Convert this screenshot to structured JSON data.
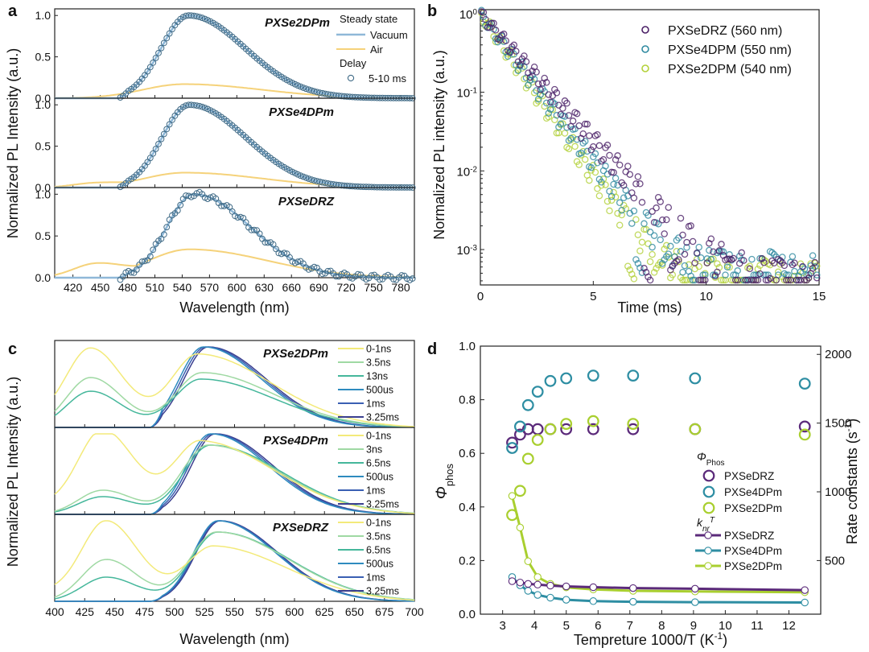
{
  "panel_labels": [
    "a",
    "b",
    "c",
    "d"
  ],
  "colors": {
    "vacuum": "#8fb8d8",
    "air": "#f5d27a",
    "delay_marker": "#3f6a86",
    "drz_marker": "#4a1f66",
    "dp4_marker": "#2f8aa0",
    "dp2_marker": "#b3d139",
    "drz": "#5b2a7a",
    "dp4": "#2e8ea3",
    "dp2": "#a9cf2f",
    "c_series": [
      "#f3ea7a",
      "#9fd9a3",
      "#45b79b",
      "#2e8bbf",
      "#3a5fb3",
      "#3b3f8f"
    ]
  },
  "chart_data": [
    {
      "id": "a",
      "type": "line",
      "xlabel": "Wavelength (nm)",
      "ylabel": "Normalized PL Intensity (a.u.)",
      "xlim": [
        400,
        795
      ],
      "ylim": [
        0,
        1.08
      ],
      "xticks": [
        420,
        450,
        480,
        510,
        540,
        570,
        600,
        630,
        660,
        690,
        720,
        750,
        780
      ],
      "yticks": [
        0.0,
        0.5,
        1.0
      ],
      "legend": {
        "group1_title": "Steady state",
        "vacuum_label": "Vacuum",
        "air_label": "Air",
        "group2_title": "Delay",
        "delay_label": "5-10 ms"
      },
      "subplots": [
        {
          "name": "PXSe2DPm",
          "peak": 547,
          "air_peak": 0.17,
          "air_shoulder": 0.0
        },
        {
          "name": "PXSe4DPm",
          "peak": 548,
          "air_peak": 0.18,
          "air_shoulder": 0.05
        },
        {
          "name": "PXSeDRZ",
          "peak": 553,
          "air_peak": 0.34,
          "air_shoulder": 0.16
        }
      ]
    },
    {
      "id": "b",
      "type": "scatter",
      "xlabel": "Time (ms)",
      "ylabel": "Normalized PL intensity (a.u.)",
      "xlim": [
        0,
        15
      ],
      "ylim_log10": [
        -3.45,
        0.05
      ],
      "xticks": [
        0,
        5,
        10,
        15
      ],
      "ytick_labels": [
        {
          "exp": 0,
          "label": "10",
          "sup": "0"
        },
        {
          "exp": -1,
          "label": "10",
          "sup": "-1"
        },
        {
          "exp": -2,
          "label": "10",
          "sup": "-2"
        },
        {
          "exp": -3,
          "label": "10",
          "sup": "-3"
        }
      ],
      "series": [
        {
          "name": "PXSeDRZ (560 nm)",
          "tau": 1.35,
          "floor": 0.0004
        },
        {
          "name": "PXSe4DPM (550 nm)",
          "tau": 1.15,
          "floor": 0.0005
        },
        {
          "name": "PXSe2DPM (540 nm)",
          "tau": 1.05,
          "floor": 0.0004
        }
      ]
    },
    {
      "id": "c",
      "type": "line",
      "xlabel": "Wavelength (nm)",
      "ylabel": "Normalized PL Intensity (a.u.)",
      "xlim": [
        400,
        700
      ],
      "ylim": [
        0,
        1.08
      ],
      "xticks": [
        400,
        425,
        450,
        475,
        500,
        525,
        550,
        575,
        600,
        625,
        650,
        675,
        700
      ],
      "subplots": [
        {
          "name": "PXSe2DPm",
          "labels": [
            "0-1ns",
            "3.5ns",
            "13ns",
            "500us",
            "1ms",
            "3.25ms"
          ]
        },
        {
          "name": "PXSe4DPm",
          "labels": [
            "0-1ns",
            "3ns",
            "6.5ns",
            "500us",
            "1ms",
            "3.25ms"
          ]
        },
        {
          "name": "PXSeDRZ",
          "labels": [
            "0-1ns",
            "3.5ns",
            "6.5ns",
            "500us",
            "1ms",
            "3.25ms"
          ]
        }
      ]
    },
    {
      "id": "d",
      "type": "scatter",
      "xlabel": "Tempreture 1000/T (K",
      "xlabel_sup": "-1",
      "xlabel_end": ")",
      "ylabel_left": "Φphos",
      "ylabel_left_main": "Φ",
      "ylabel_left_sub": "phos",
      "ylabel_right": "Rate constants (s",
      "ylabel_right_sup": "-1",
      "ylabel_right_end": ")",
      "xlim": [
        2.3,
        13
      ],
      "ylim_left": [
        0,
        1.0
      ],
      "ylim_right": [
        110,
        2060
      ],
      "xticks": [
        3,
        4,
        5,
        6,
        7,
        8,
        9,
        10,
        11,
        12
      ],
      "yticks_left": [
        0.0,
        0.2,
        0.4,
        0.6,
        0.8,
        1.0
      ],
      "yticks_right": [
        500,
        1000,
        1500,
        2000
      ],
      "legend": {
        "phos_title": "Φ",
        "phos_title_sub": "Phos",
        "knr_title": "k",
        "knr_title_sub": "nr",
        "knr_title_sup": "T",
        "labels": [
          "PXSeDRZ",
          "PXSe4DPm",
          "PXSe2DPm"
        ]
      },
      "x": [
        3.3,
        3.55,
        3.8,
        4.1,
        4.5,
        5.0,
        5.85,
        7.1,
        9.05,
        12.5
      ],
      "phos": [
        {
          "name": "PXSeDRZ",
          "values": [
            0.64,
            0.67,
            0.69,
            0.69,
            0.69,
            0.69,
            0.69,
            0.69,
            0.69,
            0.7
          ]
        },
        {
          "name": "PXSe4DPm",
          "values": [
            0.62,
            0.7,
            0.78,
            0.83,
            0.87,
            0.88,
            0.89,
            0.89,
            0.88,
            0.86
          ]
        },
        {
          "name": "PXSe2DPm",
          "values": [
            0.37,
            0.46,
            0.58,
            0.65,
            0.69,
            0.71,
            0.72,
            0.71,
            0.69,
            0.67
          ]
        }
      ],
      "knr": [
        {
          "name": "PXSeDRZ",
          "values": [
            350,
            340,
            330,
            325,
            318,
            312,
            306,
            300,
            295,
            285
          ]
        },
        {
          "name": "PXSe4DPm",
          "values": [
            380,
            320,
            280,
            250,
            230,
            215,
            205,
            200,
            197,
            195
          ]
        },
        {
          "name": "PXSe2DPm",
          "values": [
            970,
            740,
            495,
            380,
            330,
            305,
            290,
            280,
            275,
            270
          ]
        }
      ]
    }
  ]
}
